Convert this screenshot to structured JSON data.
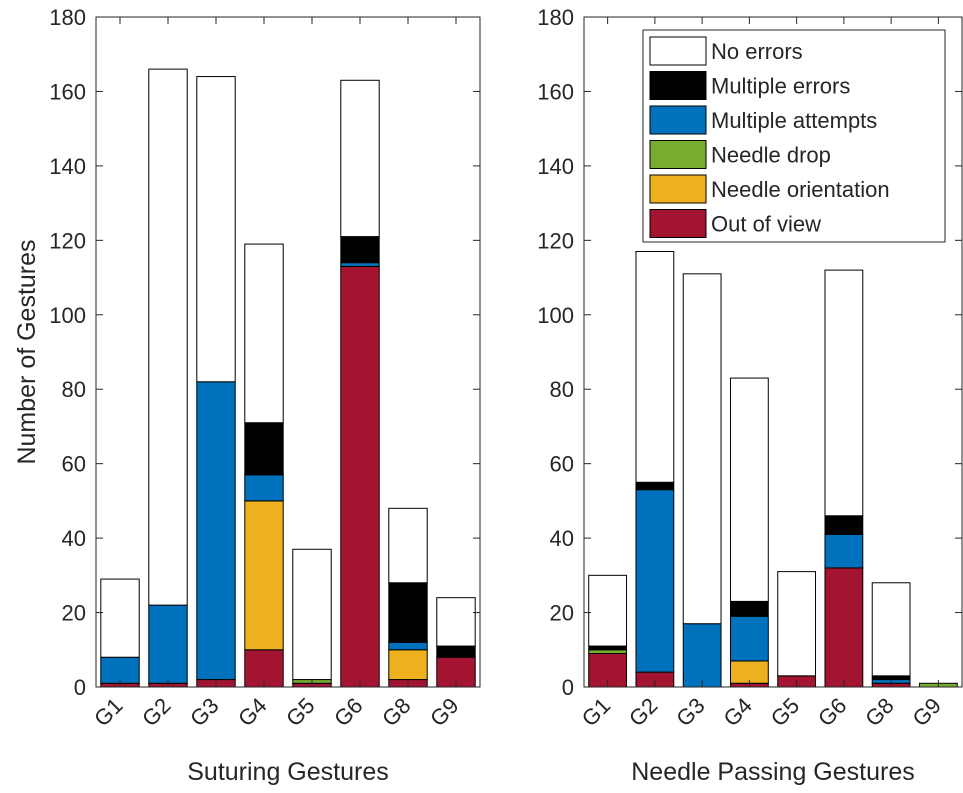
{
  "chart_data": [
    {
      "type": "bar",
      "stacked": true,
      "title": "",
      "xlabel": "Suturing Gestures",
      "ylabel": "Number of Gestures",
      "ylim": [
        0,
        180
      ],
      "yticks": [
        0,
        20,
        40,
        60,
        80,
        100,
        120,
        140,
        160,
        180
      ],
      "grid": false,
      "categories": [
        "G1",
        "G2",
        "G3",
        "G4",
        "G5",
        "G6",
        "G8",
        "G9"
      ],
      "series": [
        {
          "name": "Out of view",
          "color": "#A2142F",
          "values": [
            1,
            1,
            2,
            10,
            1,
            113,
            2,
            8
          ]
        },
        {
          "name": "Needle orientation",
          "color": "#EDB120",
          "values": [
            0,
            0,
            0,
            40,
            0,
            0,
            8,
            0
          ]
        },
        {
          "name": "Needle drop",
          "color": "#77AC30",
          "values": [
            0,
            0,
            0,
            0,
            1,
            0,
            0,
            0
          ]
        },
        {
          "name": "Multiple attempts",
          "color": "#0072BD",
          "values": [
            7,
            21,
            80,
            7,
            0,
            1,
            2,
            0
          ]
        },
        {
          "name": "Multiple errors",
          "color": "#000000",
          "values": [
            0,
            0,
            0,
            14,
            0,
            7,
            16,
            3
          ]
        },
        {
          "name": "No errors",
          "color": "#FFFFFF",
          "values": [
            21,
            144,
            82,
            48,
            35,
            42,
            20,
            13
          ]
        }
      ]
    },
    {
      "type": "bar",
      "stacked": true,
      "title": "",
      "xlabel": "Needle Passing Gestures",
      "ylabel": "",
      "ylim": [
        0,
        180
      ],
      "yticks": [
        0,
        20,
        40,
        60,
        80,
        100,
        120,
        140,
        160,
        180
      ],
      "grid": false,
      "legend_position": "top-right",
      "legend_order": [
        "No errors",
        "Multiple errors",
        "Multiple attempts",
        "Needle drop",
        "Needle orientation",
        "Out of view"
      ],
      "categories": [
        "G1",
        "G2",
        "G3",
        "G4",
        "G5",
        "G6",
        "G8",
        "G9"
      ],
      "series": [
        {
          "name": "Out of view",
          "color": "#A2142F",
          "values": [
            9,
            4,
            0,
            1,
            3,
            32,
            1,
            0
          ]
        },
        {
          "name": "Needle orientation",
          "color": "#EDB120",
          "values": [
            0,
            0,
            0,
            6,
            0,
            0,
            0,
            0
          ]
        },
        {
          "name": "Needle drop",
          "color": "#77AC30",
          "values": [
            1,
            0,
            0,
            0,
            0,
            0,
            0,
            1
          ]
        },
        {
          "name": "Multiple attempts",
          "color": "#0072BD",
          "values": [
            0,
            49,
            17,
            12,
            0,
            9,
            1,
            0
          ]
        },
        {
          "name": "Multiple errors",
          "color": "#000000",
          "values": [
            1,
            2,
            0,
            4,
            0,
            5,
            1,
            0
          ]
        },
        {
          "name": "No errors",
          "color": "#FFFFFF",
          "values": [
            19,
            62,
            94,
            60,
            28,
            66,
            25,
            0
          ]
        }
      ]
    }
  ]
}
